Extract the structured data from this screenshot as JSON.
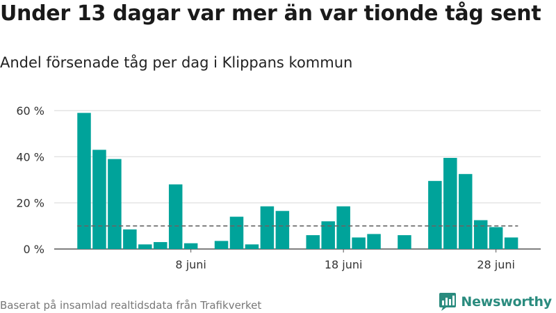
{
  "title": "Under 13 dagar var mer än var tionde tåg sent",
  "subtitle": "Andel försenade tåg per dag i Klippans kommun",
  "source": "Baserat på insamlad realtidsdata från Trafikverket",
  "brand": "Newsworthy",
  "colors": {
    "bar": "#00a39a",
    "reference_line": "#666666",
    "grid": "#dddddd",
    "brand": "#2a8b7e"
  },
  "chart_data": {
    "type": "bar",
    "x_unit": "day of June",
    "x": [
      1,
      2,
      3,
      4,
      5,
      6,
      7,
      8,
      9,
      10,
      11,
      12,
      13,
      14,
      15,
      16,
      17,
      18,
      19,
      20,
      21,
      22,
      23,
      24,
      25,
      26,
      27,
      28,
      29
    ],
    "values": [
      59,
      43,
      39,
      8.5,
      2,
      3,
      28,
      2.5,
      null,
      3.5,
      14,
      2,
      18.5,
      16.5,
      null,
      6,
      12,
      18.5,
      5,
      6.5,
      null,
      6,
      null,
      29.5,
      39.5,
      32.5,
      12.5,
      9.5,
      5
    ],
    "reference_line": 10,
    "ylim": [
      0,
      60
    ],
    "yticks": [
      {
        "value": 0,
        "label": "0 %"
      },
      {
        "value": 20,
        "label": "20 %"
      },
      {
        "value": 40,
        "label": "40 %"
      },
      {
        "value": 60,
        "label": "60 %"
      }
    ],
    "xticks": [
      {
        "value": 8,
        "label": "8 juni"
      },
      {
        "value": 18,
        "label": "18 juni"
      },
      {
        "value": 28,
        "label": "28 juni"
      }
    ],
    "grid": true,
    "legend": "none"
  }
}
